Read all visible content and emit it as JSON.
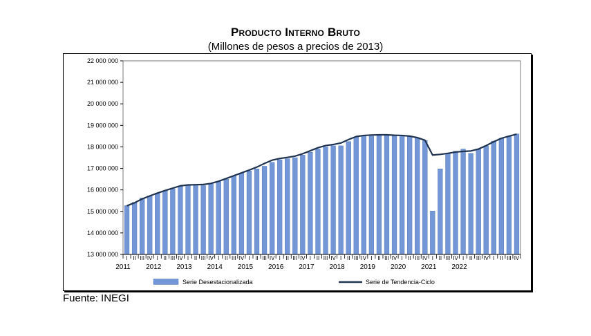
{
  "header": {
    "title": "Producto Interno Bruto",
    "subtitle": "(Millones de pesos a precios de 2013)"
  },
  "footer": {
    "source": "Fuente: INEGI"
  },
  "colors": {
    "bar": "#7396d6",
    "bar_edge": "#4a6fb5",
    "line": "#1f3350",
    "axis": "#000000",
    "grid": "#d0d0d0"
  },
  "chart_data": {
    "type": "bar",
    "ylim": [
      13000000,
      22000000
    ],
    "yticks": [
      13000000,
      14000000,
      15000000,
      16000000,
      17000000,
      18000000,
      19000000,
      20000000,
      21000000,
      22000000
    ],
    "ytick_labels": [
      "13 000 000",
      "14 000 000",
      "15 000 000",
      "16 000 000",
      "17 000 000",
      "18 000 000",
      "19 000 000",
      "20 000 000",
      "21 000 000",
      "22 000 000"
    ],
    "quarter_labels": [
      "I",
      "II",
      "III",
      "IV"
    ],
    "years": [
      "2011",
      "2012",
      "2013",
      "2014",
      "2015",
      "2016",
      "2017",
      "2018",
      "2019",
      "2020",
      "2021",
      "2022"
    ],
    "grid": false,
    "legend_position": "bottom",
    "series": [
      {
        "name": "Serie Desestacionalizada",
        "kind": "bar",
        "values": [
          15270000,
          15420000,
          15620000,
          15720000,
          15850000,
          15960000,
          16050000,
          16160000,
          16230000,
          16200000,
          16200000,
          16280000,
          16380000,
          16500000,
          16650000,
          16780000,
          16880000,
          16980000,
          17100000,
          17280000,
          17400000,
          17450000,
          17500000,
          17620000,
          17750000,
          17900000,
          18000000,
          18050000,
          18050000,
          18250000,
          18470000,
          18520000,
          18500000,
          18550000,
          18550000,
          18500000,
          18520000,
          18500000,
          18420000,
          18300000,
          15020000,
          16980000,
          17680000,
          17800000,
          17900000,
          17700000,
          17900000,
          18050000,
          18270000,
          18400000,
          18500000,
          18600000
        ]
      },
      {
        "name": "Serie de Tendencia-Ciclo",
        "kind": "line",
        "values": [
          15260000,
          15400000,
          15580000,
          15720000,
          15850000,
          15970000,
          16080000,
          16190000,
          16230000,
          16240000,
          16250000,
          16300000,
          16400000,
          16530000,
          16660000,
          16790000,
          16920000,
          17060000,
          17230000,
          17380000,
          17460000,
          17510000,
          17570000,
          17680000,
          17820000,
          17960000,
          18060000,
          18110000,
          18180000,
          18340000,
          18480000,
          18530000,
          18550000,
          18560000,
          18560000,
          18540000,
          18530000,
          18500000,
          18430000,
          18310000,
          17620000,
          17650000,
          17700000,
          17760000,
          17790000,
          17810000,
          17900000,
          18060000,
          18240000,
          18400000,
          18500000,
          18590000
        ]
      }
    ]
  }
}
